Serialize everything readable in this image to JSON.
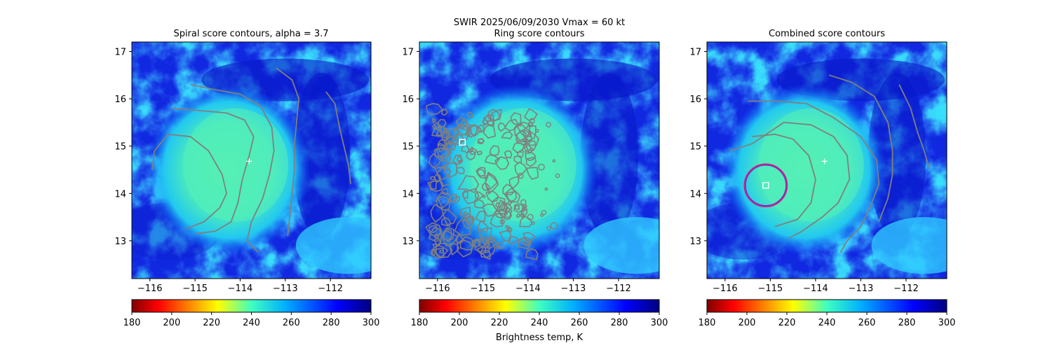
{
  "figure": {
    "suptitle": "SWIR  2025/06/09/2030    Vmax = 60 kt",
    "colorbar_label": "Brightness temp, K"
  },
  "colors": {
    "contour": "#808080",
    "marker": "#ffffff",
    "circle_outer": "#cc2288",
    "circle_inner": "#7722cc"
  },
  "chart_data": [
    {
      "type": "heatmap",
      "title": "Spiral score contours, alpha =  3.7",
      "x_ticks": [
        -116,
        -115,
        -114,
        -113,
        -112
      ],
      "y_ticks": [
        13,
        14,
        15,
        16,
        17
      ],
      "xlim": [
        -116.4,
        -111.1
      ],
      "ylim": [
        12.2,
        17.2
      ],
      "center_marker": {
        "lon": -113.8,
        "lat": 14.68,
        "symbol": "+"
      },
      "contours": [
        [
          [
            -115.5,
            15.8
          ],
          [
            -114.9,
            15.75
          ],
          [
            -114.3,
            15.7
          ],
          [
            -113.9,
            15.55
          ],
          [
            -113.7,
            15.2
          ],
          [
            -113.8,
            14.8
          ],
          [
            -113.95,
            14.3
          ],
          [
            -114.05,
            13.8
          ],
          [
            -114.2,
            13.4
          ],
          [
            -114.55,
            13.2
          ],
          [
            -115.0,
            13.15
          ]
        ],
        [
          [
            -115.95,
            14.5
          ],
          [
            -115.9,
            14.9
          ],
          [
            -115.6,
            15.25
          ],
          [
            -115.1,
            15.2
          ],
          [
            -114.7,
            14.9
          ],
          [
            -114.4,
            14.4
          ],
          [
            -114.3,
            14.0
          ],
          [
            -114.45,
            13.7
          ],
          [
            -114.8,
            13.4
          ],
          [
            -115.2,
            13.25
          ]
        ],
        [
          [
            -115.1,
            16.3
          ],
          [
            -114.6,
            16.2
          ],
          [
            -114.0,
            16.1
          ],
          [
            -113.55,
            15.85
          ],
          [
            -113.3,
            15.4
          ],
          [
            -113.25,
            14.9
          ],
          [
            -113.35,
            14.4
          ],
          [
            -113.5,
            13.9
          ],
          [
            -113.75,
            13.4
          ],
          [
            -113.85,
            13.0
          ],
          [
            -113.6,
            12.75
          ]
        ],
        [
          [
            -113.2,
            16.65
          ],
          [
            -112.85,
            16.4
          ],
          [
            -112.7,
            16.0
          ],
          [
            -112.75,
            15.5
          ],
          [
            -112.8,
            15.0
          ],
          [
            -112.8,
            14.5
          ],
          [
            -112.85,
            14.0
          ],
          [
            -112.9,
            13.5
          ],
          [
            -112.95,
            13.1
          ]
        ],
        [
          [
            -112.1,
            16.15
          ],
          [
            -111.9,
            15.9
          ],
          [
            -111.8,
            15.4
          ],
          [
            -111.7,
            15.0
          ],
          [
            -111.6,
            14.6
          ],
          [
            -111.55,
            14.2
          ]
        ]
      ],
      "colorbar": {
        "ticks": [
          180,
          200,
          220,
          240,
          260,
          280,
          300
        ],
        "range": [
          180,
          300
        ]
      }
    },
    {
      "type": "heatmap",
      "title": "Ring score contours",
      "x_ticks": [
        -116,
        -115,
        -114,
        -113,
        -112
      ],
      "y_ticks": [
        13,
        14,
        15,
        16,
        17
      ],
      "xlim": [
        -116.4,
        -111.1
      ],
      "ylim": [
        12.2,
        17.2
      ],
      "square_marker": {
        "lon": -115.45,
        "lat": 15.08
      },
      "contour_region": {
        "lon_min": -116.1,
        "lon_max": -113.3,
        "lat_min": 12.7,
        "lat_max": 15.8
      },
      "colorbar": {
        "ticks": [
          180,
          200,
          220,
          240,
          260,
          280,
          300
        ],
        "range": [
          180,
          300
        ]
      }
    },
    {
      "type": "heatmap",
      "title": "Combined score contours",
      "x_ticks": [
        -116,
        -115,
        -114,
        -113,
        -112
      ],
      "y_ticks": [
        13,
        14,
        15,
        16,
        17
      ],
      "xlim": [
        -116.4,
        -111.1
      ],
      "ylim": [
        12.2,
        17.2
      ],
      "center_marker": {
        "lon": -113.8,
        "lat": 14.68,
        "symbol": "+"
      },
      "square_marker": {
        "lon": -115.1,
        "lat": 14.17
      },
      "circle": {
        "lon": -115.1,
        "lat": 14.17,
        "radius_deg": 0.47
      },
      "contours": [
        [
          [
            -115.4,
            15.2
          ],
          [
            -114.9,
            15.25
          ],
          [
            -114.5,
            15.15
          ],
          [
            -114.15,
            14.8
          ],
          [
            -114.0,
            14.3
          ],
          [
            -114.1,
            13.8
          ],
          [
            -114.4,
            13.45
          ],
          [
            -114.9,
            13.3
          ]
        ],
        [
          [
            -115.9,
            14.9
          ],
          [
            -115.4,
            15.05
          ],
          [
            -114.7,
            15.5
          ],
          [
            -114.1,
            15.45
          ],
          [
            -113.6,
            15.2
          ],
          [
            -113.3,
            14.8
          ],
          [
            -113.25,
            14.3
          ],
          [
            -113.5,
            13.8
          ],
          [
            -113.85,
            13.5
          ],
          [
            -114.3,
            13.2
          ],
          [
            -114.6,
            13.05
          ]
        ],
        [
          [
            -115.5,
            15.95
          ],
          [
            -114.9,
            15.95
          ],
          [
            -114.2,
            15.9
          ],
          [
            -113.6,
            15.6
          ],
          [
            -113.0,
            15.2
          ],
          [
            -112.65,
            14.7
          ],
          [
            -112.6,
            14.2
          ],
          [
            -112.8,
            13.7
          ],
          [
            -113.0,
            13.3
          ],
          [
            -113.3,
            13.0
          ],
          [
            -113.45,
            12.75
          ]
        ],
        [
          [
            -113.7,
            16.5
          ],
          [
            -113.2,
            16.35
          ],
          [
            -112.7,
            16.05
          ],
          [
            -112.4,
            15.5
          ],
          [
            -112.3,
            14.9
          ],
          [
            -112.3,
            14.4
          ],
          [
            -112.4,
            13.9
          ],
          [
            -112.6,
            13.4
          ]
        ],
        [
          [
            -112.15,
            16.3
          ],
          [
            -111.9,
            15.8
          ],
          [
            -111.75,
            15.3
          ],
          [
            -111.6,
            14.9
          ],
          [
            -111.5,
            14.55
          ]
        ]
      ],
      "colorbar": {
        "ticks": [
          180,
          200,
          220,
          240,
          260,
          280,
          300
        ],
        "range": [
          180,
          300
        ]
      }
    }
  ]
}
